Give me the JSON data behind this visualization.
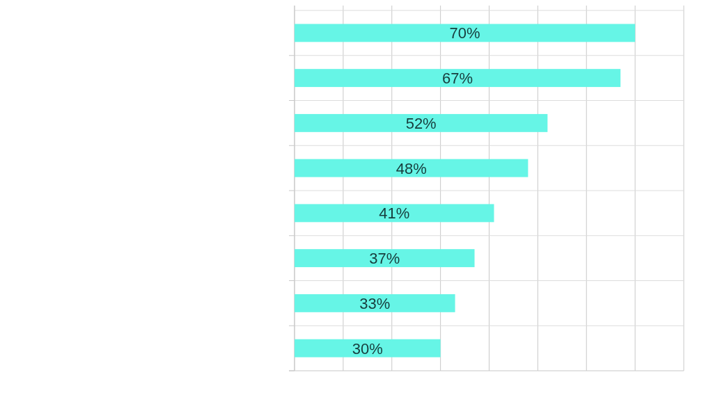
{
  "chart_data": {
    "type": "bar",
    "orientation": "horizontal",
    "categories": [
      null,
      null,
      null,
      null,
      null,
      null,
      null,
      null
    ],
    "values": [
      70,
      67,
      52,
      48,
      41,
      37,
      33,
      30
    ],
    "color": "#66f5e6",
    "data_labels": true,
    "value_labels": [
      "70%",
      "67%",
      "52%",
      "48%",
      "41%",
      "37%",
      "33%",
      "30%"
    ],
    "xlim": [
      0,
      80
    ],
    "xticks": [
      {
        "value": 0,
        "label": null
      },
      {
        "value": 10,
        "label": null
      },
      {
        "value": 20,
        "label": null
      },
      {
        "value": 30,
        "label": null
      },
      {
        "value": 40,
        "label": null
      },
      {
        "value": 50,
        "label": null
      },
      {
        "value": 60,
        "label": null
      },
      {
        "value": 70,
        "label": null
      },
      {
        "value": 80,
        "label": null
      }
    ],
    "grid": true
  }
}
